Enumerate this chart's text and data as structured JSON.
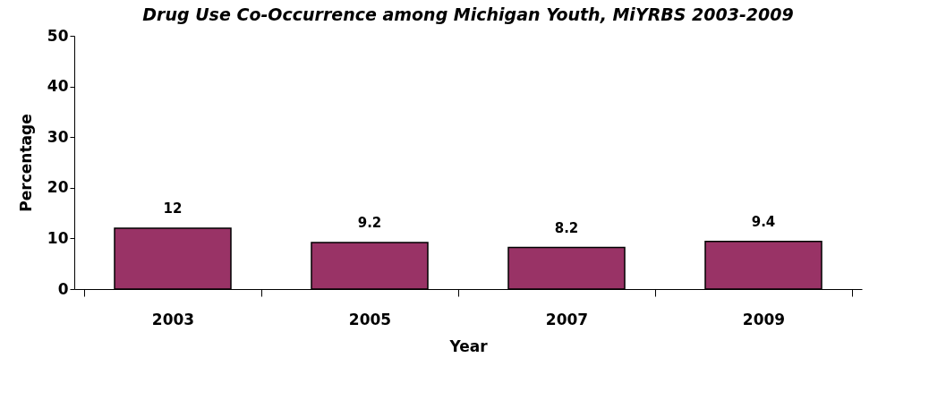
{
  "chart_data": {
    "type": "bar",
    "title": "Drug Use Co-Occurrence among Michigan Youth, MiYRBS 2003-2009",
    "xlabel": "Year",
    "ylabel": "Percentage",
    "categories": [
      "2003",
      "2005",
      "2007",
      "2009"
    ],
    "series": [
      {
        "color": "#993366",
        "values": [
          12,
          9.2,
          8.2,
          9.4
        ]
      }
    ],
    "ylim": [
      0,
      50
    ],
    "yticks": [
      0,
      10,
      20,
      30,
      40,
      50
    ],
    "data_labels": true,
    "grid": false
  }
}
